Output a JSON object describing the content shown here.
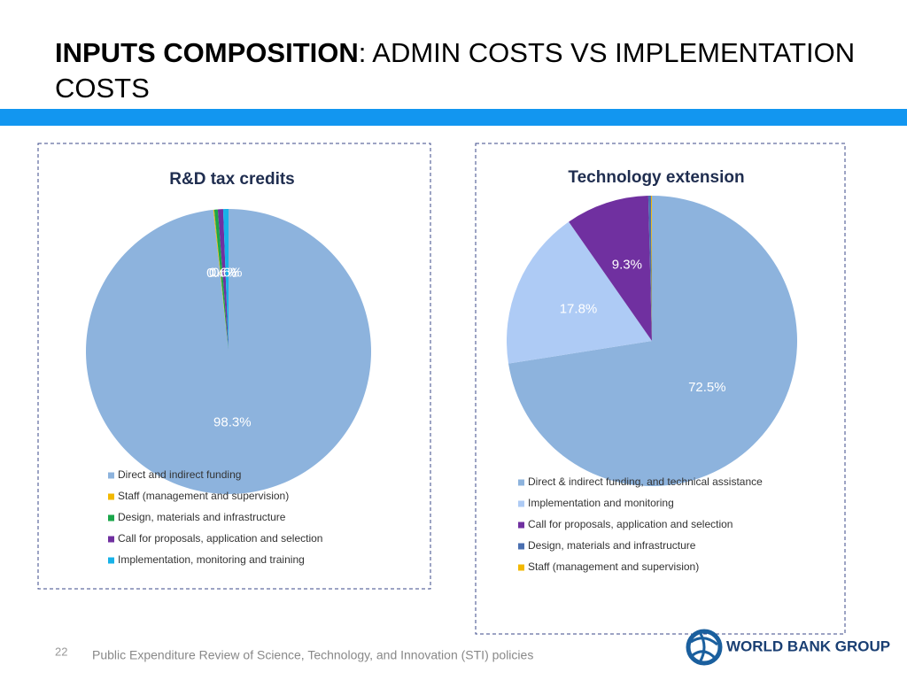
{
  "slide": {
    "title_bold": "INPUTS COMPOSITION",
    "title_rest": ": ADMIN COSTS VS IMPLEMENTATION COSTS",
    "page_number": "22",
    "footer": "Public Expenditure Review of Science, Technology, and Innovation (STI) policies",
    "logo_text": "WORLD BANK GROUP"
  },
  "chart_data": [
    {
      "type": "pie",
      "title": "R&D tax credits",
      "categories": [
        "Direct and indirect funding",
        "Staff (management and supervision)",
        "Design, materials and infrastructure",
        "Call for proposals, application and selection",
        "Implementation, monitoring and training"
      ],
      "values": [
        98.3,
        0.1,
        0.4,
        0.6,
        0.6
      ],
      "value_labels": [
        "98.3%",
        null,
        "0.4%",
        "0.6%",
        "0.6%"
      ],
      "colors": [
        "#8db3dd",
        "#f2b800",
        "#1aa64a",
        "#7030a0",
        "#17b2e8"
      ]
    },
    {
      "type": "pie",
      "title": "Technology extension",
      "categories": [
        "Direct & indirect funding, and technical assistance",
        "Implementation and monitoring",
        "Call for proposals, application and selection",
        "Design, materials and infrastructure",
        "Staff (management and supervision)"
      ],
      "values": [
        72.5,
        17.8,
        9.3,
        0.3,
        0.1
      ],
      "value_labels": [
        "72.5%",
        "17.8%",
        "9.3%",
        null,
        null
      ],
      "colors": [
        "#8db3dd",
        "#aecbf5",
        "#7030a0",
        "#4a6fb0",
        "#f2b800"
      ]
    }
  ]
}
